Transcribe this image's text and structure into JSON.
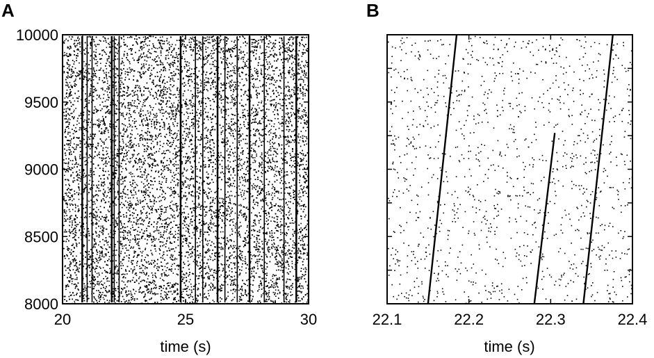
{
  "chart_data": [
    {
      "panel": "A",
      "type": "scatter",
      "subtype": "spike-raster",
      "xlabel": "time (s)",
      "ylabel": "",
      "xlim": [
        20,
        30
      ],
      "ylim": [
        8000,
        10000
      ],
      "xticks": [
        "20",
        "25",
        "30"
      ],
      "yticks": [
        "8000",
        "8500",
        "9000",
        "9500",
        "10000"
      ],
      "grid": false,
      "marker_color": "#000000",
      "background_density": 0.55,
      "synchronous_events_x": [
        20.8,
        21.0,
        21.2,
        22.0,
        22.1,
        22.3,
        24.8,
        25.4,
        25.7,
        26.3,
        26.6,
        27.1,
        27.6,
        28.2,
        29.0,
        29.5
      ]
    },
    {
      "panel": "B",
      "type": "scatter",
      "subtype": "spike-raster",
      "xlabel": "time (s)",
      "ylabel": "",
      "xlim": [
        22.1,
        22.4
      ],
      "ylim": [
        8000,
        10000
      ],
      "xticks": [
        "22.1",
        "22.2",
        "22.3",
        "22.4"
      ],
      "yticks": [],
      "grid": false,
      "marker_color": "#000000",
      "background_density": 0.08,
      "propagating_waves": [
        {
          "x_start": 22.15,
          "x_end": 22.185,
          "y_start": 8000,
          "y_end": 10000
        },
        {
          "x_start": 22.28,
          "x_end": 22.305,
          "y_start": 8000,
          "y_end": 9270
        },
        {
          "x_start": 22.34,
          "x_end": 22.376,
          "y_start": 8000,
          "y_end": 10000
        }
      ]
    }
  ]
}
